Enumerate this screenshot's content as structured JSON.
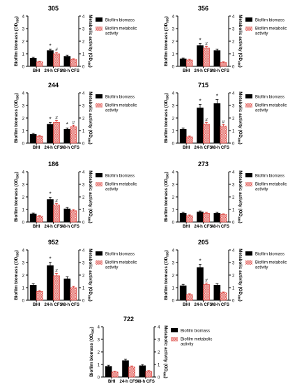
{
  "figure": {
    "legend": {
      "biomass": "Biofilm biomass",
      "activity_line1": "Biofilm metabolic",
      "activity_line2": "activity"
    },
    "y_left_label": "Biofilm biomass (OD",
    "y_left_sub": "595",
    "y_right_label": "Metabolic activity (OD",
    "y_right_sub": "490",
    "colors": {
      "biomass": "#000000",
      "activity_fill": "#ffffff",
      "activity_hatch": "#d9302a",
      "axis": "#000000"
    }
  },
  "chart_data": [
    {
      "type": "bar",
      "title": "305",
      "categories": [
        "BHI",
        "24-h CFS",
        "48-h CFS"
      ],
      "ylim": [
        0,
        4
      ],
      "series": [
        {
          "name": "Biofilm biomass",
          "values": [
            0.65,
            1.25,
            0.8
          ]
        },
        {
          "name": "Biofilm metabolic activity",
          "values": [
            0.35,
            1.0,
            0.55
          ]
        }
      ],
      "annotations": [
        {
          "category": "24-h CFS",
          "series": "Biofilm biomass",
          "text": "*"
        },
        {
          "category": "24-h CFS",
          "series": "Biofilm metabolic activity",
          "text": "#"
        }
      ]
    },
    {
      "type": "bar",
      "title": "356",
      "categories": [
        "BHI",
        "24-h CFS",
        "48-h CFS"
      ],
      "ylim": [
        0,
        4
      ],
      "series": [
        {
          "name": "Biofilm biomass",
          "values": [
            0.6,
            1.65,
            1.25
          ]
        },
        {
          "name": "Biofilm metabolic activity",
          "values": [
            0.5,
            1.45,
            0.3
          ]
        }
      ],
      "annotations": [
        {
          "category": "24-h CFS",
          "series": "Biofilm biomass",
          "text": "*"
        },
        {
          "category": "24-h CFS",
          "series": "Biofilm metabolic activity",
          "text": "#"
        }
      ]
    },
    {
      "type": "bar",
      "title": "244",
      "categories": [
        "BHI",
        "24-h CFS",
        "48-h CFS"
      ],
      "ylim": [
        0,
        4
      ],
      "series": [
        {
          "name": "Biofilm biomass",
          "values": [
            0.7,
            1.5,
            1.1
          ]
        },
        {
          "name": "Biofilm metabolic activity",
          "values": [
            0.55,
            1.65,
            1.3
          ]
        }
      ],
      "annotations": [
        {
          "category": "24-h CFS",
          "series": "Biofilm biomass",
          "text": "*"
        },
        {
          "category": "24-h CFS",
          "series": "Biofilm metabolic activity",
          "text": "#"
        },
        {
          "category": "48-h CFS",
          "series": "Biofilm biomass",
          "text": "*"
        },
        {
          "category": "48-h CFS",
          "series": "Biofilm metabolic activity",
          "text": "#"
        }
      ]
    },
    {
      "type": "bar",
      "title": "715",
      "categories": [
        "BHI",
        "24-h CFS",
        "48-h CFS"
      ],
      "ylim": [
        0,
        4
      ],
      "series": [
        {
          "name": "Biofilm biomass",
          "values": [
            1.1,
            2.8,
            3.15
          ]
        },
        {
          "name": "Biofilm metabolic activity",
          "values": [
            0.5,
            1.5,
            1.35
          ]
        }
      ],
      "annotations": [
        {
          "category": "24-h CFS",
          "series": "Biofilm biomass",
          "text": "*"
        },
        {
          "category": "24-h CFS",
          "series": "Biofilm metabolic activity",
          "text": "#"
        },
        {
          "category": "48-h CFS",
          "series": "Biofilm biomass",
          "text": "*"
        },
        {
          "category": "48-h CFS",
          "series": "Biofilm metabolic activity",
          "text": "#"
        }
      ]
    },
    {
      "type": "bar",
      "title": "186",
      "categories": [
        "BHI",
        "24-h CFS",
        "48-h CFS"
      ],
      "ylim": [
        0,
        4
      ],
      "series": [
        {
          "name": "Biofilm biomass",
          "values": [
            0.65,
            1.8,
            1.05
          ]
        },
        {
          "name": "Biofilm metabolic activity",
          "values": [
            0.45,
            1.35,
            0.9
          ]
        }
      ],
      "annotations": [
        {
          "category": "24-h CFS",
          "series": "Biofilm biomass",
          "text": "*"
        },
        {
          "category": "24-h CFS",
          "series": "Biofilm metabolic activity",
          "text": "#"
        }
      ]
    },
    {
      "type": "bar",
      "title": "273",
      "categories": [
        "BHI",
        "24-h CFS",
        "48-h CFS"
      ],
      "ylim": [
        0,
        4
      ],
      "series": [
        {
          "name": "Biofilm biomass",
          "values": [
            0.7,
            0.8,
            0.7
          ]
        },
        {
          "name": "Biofilm metabolic activity",
          "values": [
            0.5,
            0.7,
            0.6
          ]
        }
      ],
      "annotations": []
    },
    {
      "type": "bar",
      "title": "952",
      "categories": [
        "BHI",
        "24-h CFS",
        "48-h CFS"
      ],
      "ylim": [
        0,
        4
      ],
      "series": [
        {
          "name": "Biofilm biomass",
          "values": [
            1.2,
            2.75,
            1.7
          ]
        },
        {
          "name": "Biofilm metabolic activity",
          "values": [
            0.7,
            1.95,
            1.0
          ]
        }
      ],
      "annotations": [
        {
          "category": "24-h CFS",
          "series": "Biofilm biomass",
          "text": "*"
        },
        {
          "category": "24-h CFS",
          "series": "Biofilm metabolic activity",
          "text": "#"
        }
      ]
    },
    {
      "type": "bar",
      "title": "205",
      "categories": [
        "BHI",
        "24-h CFS",
        "48-h CFS"
      ],
      "ylim": [
        0,
        4
      ],
      "series": [
        {
          "name": "Biofilm biomass",
          "values": [
            1.15,
            2.6,
            1.2
          ]
        },
        {
          "name": "Biofilm metabolic activity",
          "values": [
            0.45,
            1.25,
            0.6
          ]
        }
      ],
      "annotations": [
        {
          "category": "24-h CFS",
          "series": "Biofilm biomass",
          "text": "*"
        },
        {
          "category": "24-h CFS",
          "series": "Biofilm metabolic activity",
          "text": "#"
        }
      ]
    },
    {
      "type": "bar",
      "title": "722",
      "categories": [
        "BHI",
        "24-h CFS",
        "48-h CFS"
      ],
      "ylim": [
        0,
        4
      ],
      "series": [
        {
          "name": "Biofilm biomass",
          "values": [
            0.85,
            1.3,
            0.9
          ]
        },
        {
          "name": "Biofilm metabolic activity",
          "values": [
            0.4,
            0.8,
            0.45
          ]
        }
      ],
      "annotations": []
    }
  ]
}
